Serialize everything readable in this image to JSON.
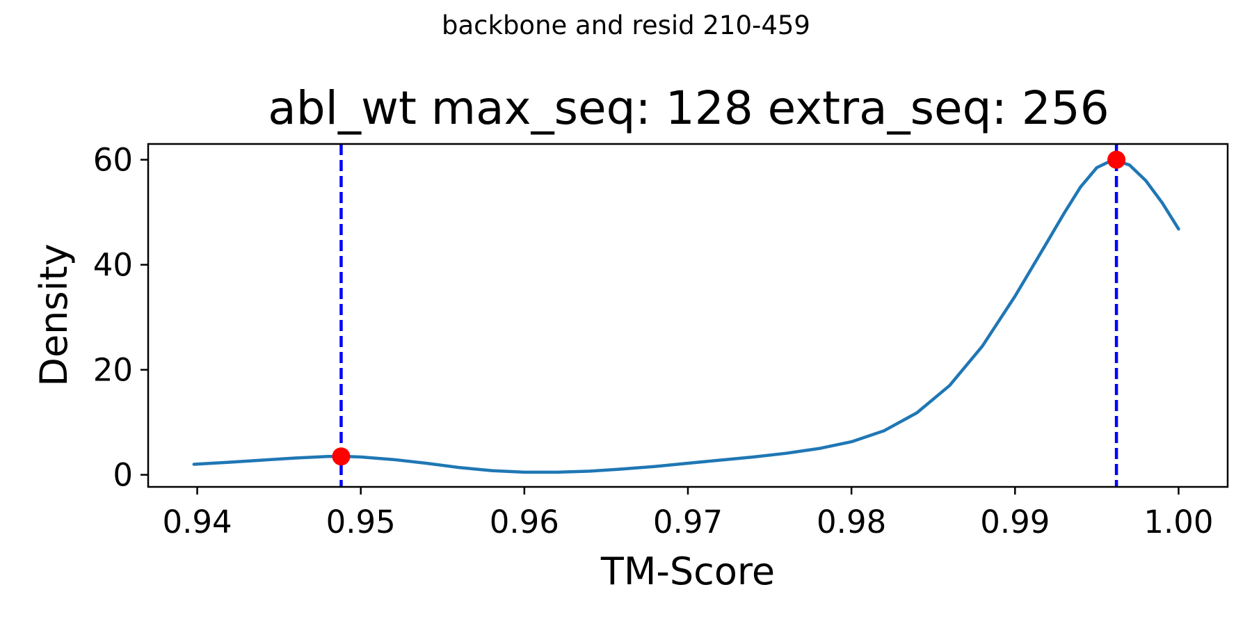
{
  "suptitle": "backbone and resid 210-459",
  "chart_data": {
    "type": "line",
    "title": "abl_wt max_seq: 128 extra_seq: 256",
    "xlabel": "TM-Score",
    "ylabel": "Density",
    "xlim": [
      0.937,
      1.003
    ],
    "ylim": [
      -2.3,
      63
    ],
    "xticks": [
      0.94,
      0.95,
      0.96,
      0.97,
      0.98,
      0.99,
      1.0
    ],
    "xtick_labels": [
      "0.94",
      "0.95",
      "0.96",
      "0.97",
      "0.98",
      "0.99",
      "1.00"
    ],
    "yticks": [
      0,
      20,
      40,
      60
    ],
    "ytick_labels": [
      "0",
      "20",
      "40",
      "60"
    ],
    "grid": false,
    "series": [
      {
        "color": "#1f77b4",
        "x": [
          0.9398,
          0.942,
          0.944,
          0.946,
          0.948,
          0.949,
          0.95,
          0.952,
          0.954,
          0.956,
          0.958,
          0.96,
          0.962,
          0.964,
          0.966,
          0.968,
          0.97,
          0.972,
          0.974,
          0.976,
          0.978,
          0.98,
          0.982,
          0.984,
          0.986,
          0.988,
          0.99,
          0.992,
          0.993,
          0.994,
          0.995,
          0.996,
          0.997,
          0.998,
          0.999,
          1.0
        ],
        "y": [
          2.0,
          2.4,
          2.8,
          3.2,
          3.5,
          3.5,
          3.4,
          2.9,
          2.2,
          1.4,
          0.8,
          0.5,
          0.5,
          0.7,
          1.1,
          1.6,
          2.2,
          2.8,
          3.4,
          4.1,
          5.0,
          6.3,
          8.4,
          11.8,
          17.0,
          24.5,
          34.0,
          44.5,
          49.8,
          54.8,
          58.5,
          60.0,
          59.0,
          56.0,
          51.8,
          46.8
        ]
      }
    ],
    "vlines": {
      "x": [
        0.9488,
        0.9962
      ],
      "color": "#0000ff",
      "style": "dashed"
    },
    "markers": {
      "points": [
        {
          "x": 0.9488,
          "y": 3.5
        },
        {
          "x": 0.9962,
          "y": 60.0
        }
      ],
      "color": "#ff0000"
    },
    "colors": {
      "line": "#1f77b4",
      "vline": "#0000ff",
      "marker": "#ff0000",
      "axes": "#000000"
    }
  }
}
